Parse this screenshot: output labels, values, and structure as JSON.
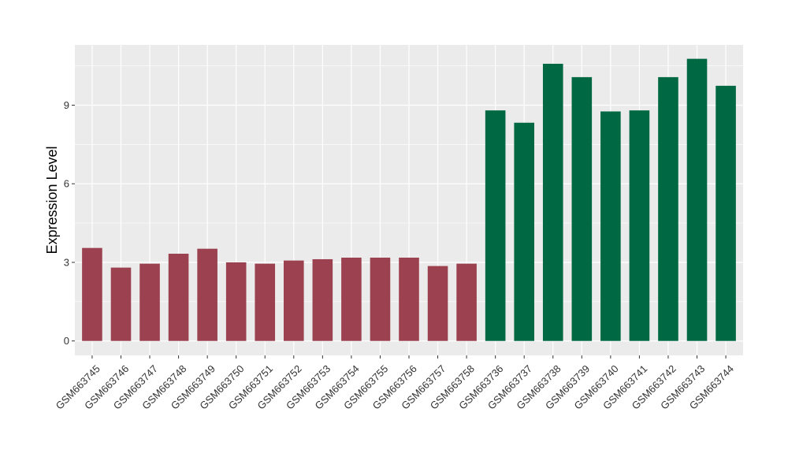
{
  "chart_data": {
    "type": "bar",
    "ylabel": "Expression Level",
    "xlabel": "",
    "ylim": [
      -0.55,
      11.3
    ],
    "yticks": [
      0,
      3,
      6,
      9
    ],
    "panel_background": "#EBEBEB",
    "grid": true,
    "legend": "none",
    "categories": [
      "GSM663745",
      "GSM663746",
      "GSM663747",
      "GSM663748",
      "GSM663749",
      "GSM663750",
      "GSM663751",
      "GSM663752",
      "GSM663753",
      "GSM663754",
      "GSM663755",
      "GSM663756",
      "GSM663757",
      "GSM663758",
      "GSM663736",
      "GSM663737",
      "GSM663738",
      "GSM663739",
      "GSM663740",
      "GSM663741",
      "GSM663742",
      "GSM663743",
      "GSM663744"
    ],
    "values": [
      3.55,
      2.8,
      2.95,
      3.33,
      3.52,
      3.0,
      2.95,
      3.07,
      3.12,
      3.18,
      3.18,
      3.18,
      2.86,
      2.95,
      8.8,
      8.33,
      10.58,
      10.07,
      8.76,
      8.8,
      10.07,
      10.77,
      9.74
    ],
    "bar_colors": [
      "#9B4150",
      "#9B4150",
      "#9B4150",
      "#9B4150",
      "#9B4150",
      "#9B4150",
      "#9B4150",
      "#9B4150",
      "#9B4150",
      "#9B4150",
      "#9B4150",
      "#9B4150",
      "#9B4150",
      "#9B4150",
      "#006843",
      "#006843",
      "#006843",
      "#006843",
      "#006843",
      "#006843",
      "#006843",
      "#006843",
      "#006843"
    ]
  }
}
